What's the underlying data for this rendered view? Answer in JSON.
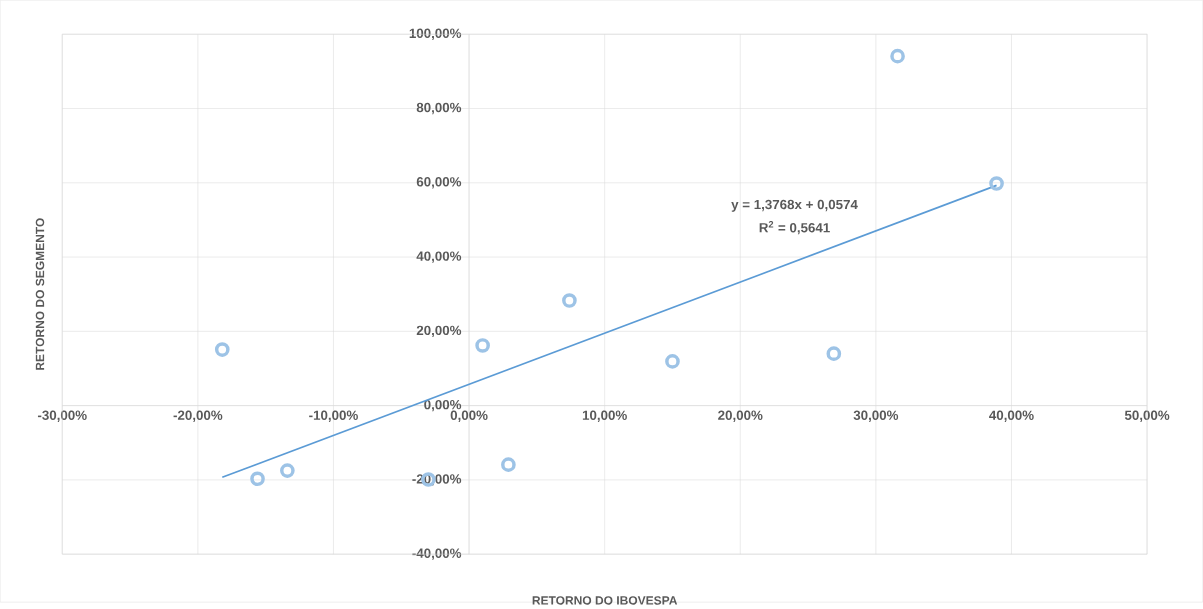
{
  "chart_data": {
    "type": "scatter",
    "xlabel": "RETORNO DO IBOVESPA",
    "ylabel": "RETORNO DO SEGMENTO",
    "xlim": [
      -30,
      50
    ],
    "ylim": [
      -40,
      100
    ],
    "xticks": [
      {
        "value": -30,
        "label": "-30,00%"
      },
      {
        "value": -20,
        "label": "-20,00%"
      },
      {
        "value": -10,
        "label": "-10,00%"
      },
      {
        "value": 0,
        "label": "0,00%"
      },
      {
        "value": 10,
        "label": "10,00%"
      },
      {
        "value": 20,
        "label": "20,00%"
      },
      {
        "value": 30,
        "label": "30,00%"
      },
      {
        "value": 40,
        "label": "40,00%"
      },
      {
        "value": 50,
        "label": "50,00%"
      }
    ],
    "yticks": [
      {
        "value": -40,
        "label": "-40,00%"
      },
      {
        "value": -20,
        "label": "-20,00%"
      },
      {
        "value": 0,
        "label": "0,00%"
      },
      {
        "value": 20,
        "label": "20,00%"
      },
      {
        "value": 40,
        "label": "40,00%"
      },
      {
        "value": 60,
        "label": "60,00%"
      },
      {
        "value": 80,
        "label": "80,00%"
      },
      {
        "value": 100,
        "label": "100,00%"
      }
    ],
    "grid": true,
    "marker": "circle",
    "series": [
      {
        "color": "#9dc3e6",
        "x": [
          -18.2,
          -15.6,
          -13.4,
          -3.0,
          1.0,
          2.9,
          7.4,
          15.0,
          26.9,
          31.6,
          38.9
        ],
        "values": [
          15.1,
          -19.7,
          -17.5,
          -19.9,
          16.2,
          -15.9,
          28.3,
          11.9,
          14.0,
          94.1,
          59.8
        ]
      },
      {
        "type": "line",
        "color": "#5b9bd5",
        "marker": "none",
        "line_style": "solid",
        "x": [
          -18.2,
          38.9
        ],
        "values": [
          -19.3,
          59.3
        ]
      }
    ],
    "annotations": [
      "y = 1,3768x + 0,0574",
      "R$^{2}$ = 0,5641"
    ]
  }
}
